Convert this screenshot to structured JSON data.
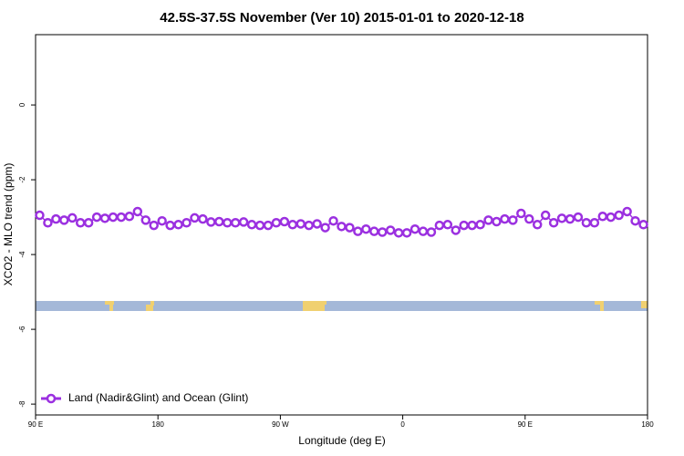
{
  "chart_data": {
    "type": "line",
    "title": "42.5S-37.5S November (Ver 10)   2015-01-01 to 2020-12-18",
    "x_label": "Longitude (deg E)",
    "y_label": "XCO2 - MLO trend (ppm)",
    "xlim": [
      90,
      540
    ],
    "ylim": [
      -8.29,
      1.88
    ],
    "xticks": [
      {
        "value": 90,
        "label": "90 E"
      },
      180,
      {
        "value": 270,
        "label": "90 W"
      },
      {
        "value": 360,
        "label": "0"
      },
      {
        "value": 450,
        "label": "90 E"
      },
      {
        "value": 540,
        "label": "180"
      }
    ],
    "yticks": [
      0,
      -2,
      -4,
      -6,
      -8
    ],
    "legend": "bottom-left",
    "x": [
      93,
      99,
      105,
      111,
      117,
      123,
      129,
      135,
      141,
      147,
      153,
      159,
      165,
      171,
      177,
      183,
      189,
      195,
      201,
      207,
      213,
      219,
      225,
      231,
      237,
      243,
      249,
      255,
      261,
      267,
      273,
      279,
      285,
      291,
      297,
      303,
      309,
      315,
      321,
      327,
      333,
      339,
      345,
      351,
      357,
      363,
      369,
      375,
      381,
      387,
      393,
      399,
      405,
      411,
      417,
      423,
      429,
      435,
      441,
      447,
      453,
      459,
      465,
      471,
      477,
      483,
      489,
      495,
      501,
      507,
      513,
      519,
      525,
      531,
      537
    ],
    "series": [
      {
        "name": "Land (Nadir&Glint) and Ocean (Glint)",
        "color": "#9b30e0",
        "values": [
          -2.95,
          -3.15,
          -3.05,
          -3.08,
          -3.02,
          -3.15,
          -3.15,
          -3.0,
          -3.03,
          -3.0,
          -3.0,
          -2.98,
          -2.85,
          -3.08,
          -3.22,
          -3.1,
          -3.22,
          -3.2,
          -3.15,
          -3.02,
          -3.05,
          -3.13,
          -3.12,
          -3.15,
          -3.15,
          -3.13,
          -3.2,
          -3.22,
          -3.22,
          -3.15,
          -3.12,
          -3.2,
          -3.18,
          -3.22,
          -3.18,
          -3.28,
          -3.1,
          -3.25,
          -3.28,
          -3.38,
          -3.32,
          -3.38,
          -3.4,
          -3.35,
          -3.42,
          -3.42,
          -3.32,
          -3.38,
          -3.4,
          -3.22,
          -3.2,
          -3.35,
          -3.22,
          -3.22,
          -3.2,
          -3.08,
          -3.12,
          -3.05,
          -3.08,
          -2.9,
          -3.05,
          -3.2,
          -2.95,
          -3.15,
          -3.03,
          -3.05,
          -3.0,
          -3.15,
          -3.15,
          -2.98,
          -3.0,
          -2.95,
          -2.85,
          -3.1,
          -3.2
        ]
      }
    ]
  }
}
